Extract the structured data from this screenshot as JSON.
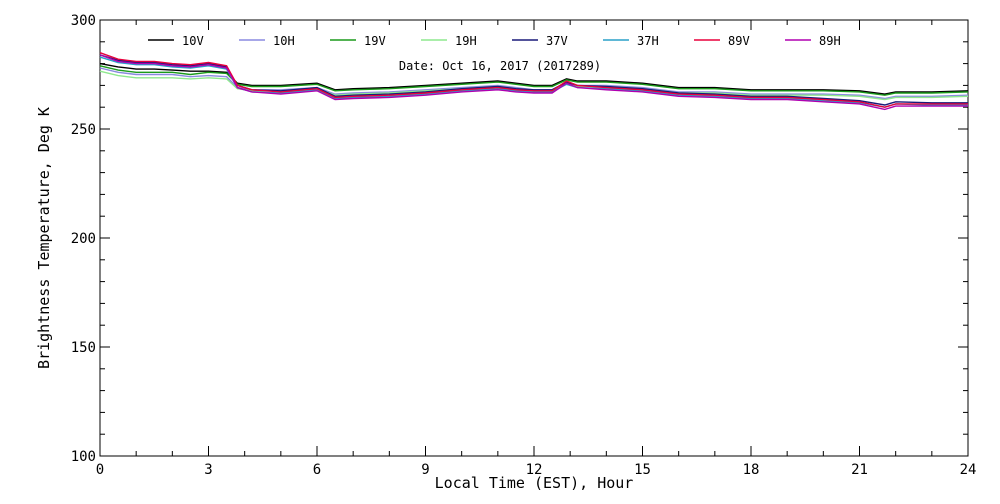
{
  "chart_data": {
    "type": "line",
    "title": "",
    "annotation": "Date: Oct 16, 2017 (2017289)",
    "xlabel": "Local Time (EST), Hour",
    "ylabel": "Brightness Temperature, Deg K",
    "xlim": [
      0,
      24
    ],
    "ylim": [
      100,
      300
    ],
    "xticks": [
      0,
      3,
      6,
      9,
      12,
      15,
      18,
      21,
      24
    ],
    "yticks": [
      100,
      150,
      200,
      250,
      300
    ],
    "grid": false,
    "legend_position": "top",
    "x": [
      0,
      0.5,
      1,
      1.5,
      2,
      2.5,
      3,
      3.5,
      3.8,
      4.2,
      5,
      6,
      6.5,
      7,
      8,
      9,
      10,
      11,
      11.5,
      12,
      12.5,
      12.9,
      13.2,
      14,
      15,
      16,
      17,
      18,
      19,
      20,
      21,
      21.7,
      22,
      23,
      24
    ],
    "series": [
      {
        "name": "10V",
        "color": "#000000",
        "values": [
          280,
          278.5,
          277.5,
          277.5,
          277,
          276.5,
          276.5,
          276,
          271,
          270,
          270,
          271,
          268,
          268.5,
          269,
          270,
          271,
          272,
          271,
          270,
          270,
          273,
          272,
          272,
          271,
          269,
          269,
          268,
          268,
          268,
          267.5,
          266,
          267,
          267,
          267.5
        ]
      },
      {
        "name": "10H",
        "color": "#8a8ae0",
        "values": [
          278,
          276,
          275,
          275,
          275,
          274,
          274.5,
          274,
          269,
          268,
          268,
          269,
          266,
          266.5,
          267,
          268,
          269,
          270,
          269,
          268,
          268,
          271,
          270,
          270,
          269,
          267,
          267,
          266,
          266,
          266,
          265.5,
          264,
          265,
          265,
          265.5
        ]
      },
      {
        "name": "19V",
        "color": "#1a9a1a",
        "values": [
          279,
          277,
          276,
          276,
          276,
          275,
          276,
          275.5,
          270.5,
          269.5,
          269.5,
          270.5,
          267.5,
          268,
          268.5,
          269.5,
          270.5,
          271.5,
          270.5,
          269.5,
          269.5,
          272.5,
          271.5,
          271.5,
          270.5,
          268.5,
          268.5,
          267.5,
          267.5,
          267.5,
          267,
          265.5,
          266.5,
          266.5,
          267
        ]
      },
      {
        "name": "19H",
        "color": "#8ee88e",
        "values": [
          276.5,
          274.5,
          273.5,
          273.5,
          273.5,
          273,
          273.5,
          273,
          268.5,
          267.5,
          267.5,
          268.5,
          265.5,
          266,
          266.5,
          267.5,
          268.5,
          269.5,
          268.5,
          267.5,
          267.5,
          270.5,
          269.5,
          269.5,
          268.5,
          266.5,
          266.5,
          265.5,
          265.5,
          265.5,
          265,
          263.5,
          264.5,
          264.5,
          265
        ]
      },
      {
        "name": "37V",
        "color": "#1a1a7a",
        "values": [
          284,
          281.5,
          280.5,
          280.5,
          279.5,
          279,
          280,
          278.5,
          270,
          268,
          267.5,
          269,
          265,
          265.5,
          266,
          267,
          268.5,
          269.5,
          268.5,
          268,
          268,
          271.5,
          270,
          269.5,
          268.5,
          266.5,
          266,
          265,
          265,
          264,
          263,
          261,
          262.5,
          262,
          262
        ]
      },
      {
        "name": "37H",
        "color": "#2aa0c8",
        "values": [
          283,
          280.5,
          279.5,
          279.5,
          278.5,
          278,
          279,
          277.5,
          269,
          267,
          266.5,
          268,
          264,
          264.5,
          265,
          266,
          267.5,
          268.5,
          267.5,
          267,
          267,
          270.5,
          269,
          268.5,
          267.5,
          265.5,
          265,
          264,
          264,
          263,
          262,
          260,
          261.5,
          261,
          261
        ]
      },
      {
        "name": "89V",
        "color": "#e8003c",
        "values": [
          285,
          282,
          281,
          281,
          280,
          279.5,
          280.5,
          279,
          270,
          268,
          267,
          268.5,
          264.5,
          265,
          265.5,
          266.5,
          268,
          269,
          268,
          267.5,
          267.5,
          272,
          270,
          269,
          268,
          266,
          265.5,
          264.5,
          264.5,
          263.5,
          262.5,
          260,
          261.5,
          261.5,
          261.5
        ]
      },
      {
        "name": "89H",
        "color": "#b000b0",
        "values": [
          284,
          281,
          280,
          280,
          279,
          278.5,
          279.5,
          278,
          269,
          267,
          266,
          267.5,
          263.5,
          264,
          264.5,
          265.5,
          267,
          268,
          267,
          266.5,
          266.5,
          271,
          269,
          268,
          267,
          265,
          264.5,
          263.5,
          263.5,
          262.5,
          261.5,
          259,
          260.5,
          260.5,
          260.5
        ]
      }
    ]
  }
}
